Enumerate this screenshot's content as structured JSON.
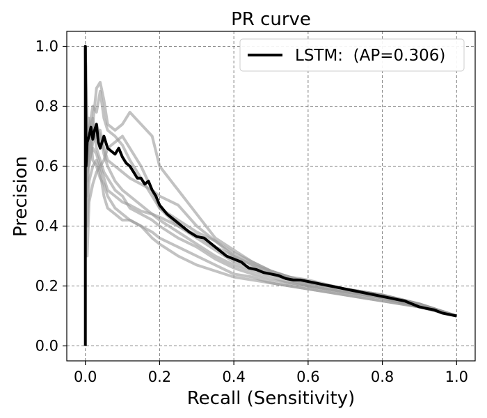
{
  "chart_data": {
    "type": "line",
    "title": "PR curve",
    "xlabel": "Recall (Sensitivity)",
    "ylabel": "Precision",
    "xlim": [
      -0.05,
      1.05
    ],
    "ylim": [
      -0.05,
      1.05
    ],
    "xticks": [
      0.0,
      0.2,
      0.4,
      0.6,
      0.8,
      1.0
    ],
    "xtick_labels": [
      "0.0",
      "0.2",
      "0.4",
      "0.6",
      "0.8",
      "1.0"
    ],
    "yticks": [
      0.0,
      0.2,
      0.4,
      0.6,
      0.8,
      1.0
    ],
    "ytick_labels": [
      "0.0",
      "0.2",
      "0.4",
      "0.6",
      "0.8",
      "1.0"
    ],
    "grid": true,
    "legend_position": "top-right",
    "colors": {
      "main": "#000000",
      "background_curves": "#999999",
      "grid": "#808080"
    },
    "series": [
      {
        "name": "LSTM:  (AP=0.306)",
        "x": [
          0.0,
          0.0,
          0.002,
          0.005,
          0.01,
          0.015,
          0.02,
          0.025,
          0.03,
          0.035,
          0.04,
          0.05,
          0.06,
          0.07,
          0.08,
          0.09,
          0.1,
          0.11,
          0.12,
          0.13,
          0.14,
          0.15,
          0.16,
          0.17,
          0.18,
          0.19,
          0.2,
          0.22,
          0.24,
          0.26,
          0.28,
          0.3,
          0.32,
          0.34,
          0.36,
          0.38,
          0.4,
          0.42,
          0.44,
          0.46,
          0.48,
          0.5,
          0.52,
          0.54,
          0.56,
          0.58,
          0.6,
          0.62,
          0.64,
          0.66,
          0.68,
          0.7,
          0.72,
          0.74,
          0.76,
          0.78,
          0.8,
          0.82,
          0.84,
          0.86,
          0.88,
          0.9,
          0.92,
          0.94,
          0.96,
          0.98,
          1.0
        ],
        "y": [
          0.0,
          1.0,
          0.6,
          0.68,
          0.7,
          0.73,
          0.69,
          0.72,
          0.74,
          0.68,
          0.66,
          0.7,
          0.66,
          0.65,
          0.64,
          0.66,
          0.63,
          0.61,
          0.6,
          0.58,
          0.56,
          0.56,
          0.54,
          0.55,
          0.52,
          0.5,
          0.47,
          0.44,
          0.42,
          0.4,
          0.38,
          0.365,
          0.36,
          0.34,
          0.32,
          0.3,
          0.29,
          0.28,
          0.26,
          0.255,
          0.245,
          0.24,
          0.235,
          0.225,
          0.22,
          0.22,
          0.215,
          0.21,
          0.205,
          0.2,
          0.195,
          0.19,
          0.185,
          0.18,
          0.175,
          0.17,
          0.165,
          0.16,
          0.155,
          0.15,
          0.14,
          0.13,
          0.125,
          0.12,
          0.11,
          0.105,
          0.1
        ]
      }
    ],
    "background_series": [
      {
        "x": [
          0.0,
          0.005,
          0.01,
          0.02,
          0.03,
          0.04,
          0.05,
          0.06,
          0.08,
          0.1,
          0.12,
          0.15,
          0.18,
          0.2,
          0.25,
          0.3,
          0.35,
          0.4,
          0.45,
          0.5,
          0.55,
          0.6,
          0.7,
          0.8,
          0.9,
          1.0
        ],
        "y": [
          1.0,
          0.55,
          0.72,
          0.8,
          0.78,
          0.85,
          0.76,
          0.72,
          0.7,
          0.67,
          0.62,
          0.56,
          0.5,
          0.46,
          0.4,
          0.36,
          0.32,
          0.28,
          0.26,
          0.24,
          0.22,
          0.2,
          0.18,
          0.16,
          0.13,
          0.1
        ]
      },
      {
        "x": [
          0.0,
          0.005,
          0.01,
          0.02,
          0.03,
          0.04,
          0.05,
          0.06,
          0.08,
          0.1,
          0.12,
          0.15,
          0.18,
          0.2,
          0.25,
          0.3,
          0.35,
          0.4,
          0.45,
          0.5,
          0.55,
          0.6,
          0.7,
          0.8,
          0.9,
          1.0
        ],
        "y": [
          1.0,
          0.62,
          0.66,
          0.74,
          0.86,
          0.88,
          0.82,
          0.74,
          0.72,
          0.74,
          0.78,
          0.74,
          0.7,
          0.6,
          0.52,
          0.44,
          0.36,
          0.32,
          0.28,
          0.25,
          0.23,
          0.22,
          0.19,
          0.17,
          0.14,
          0.1
        ]
      },
      {
        "x": [
          0.0,
          0.005,
          0.01,
          0.02,
          0.03,
          0.04,
          0.05,
          0.06,
          0.08,
          0.1,
          0.12,
          0.15,
          0.18,
          0.2,
          0.25,
          0.3,
          0.35,
          0.4,
          0.45,
          0.5,
          0.55,
          0.6,
          0.7,
          0.8,
          0.9,
          1.0
        ],
        "y": [
          1.0,
          0.5,
          0.64,
          0.7,
          0.74,
          0.7,
          0.64,
          0.6,
          0.55,
          0.52,
          0.5,
          0.47,
          0.44,
          0.42,
          0.38,
          0.34,
          0.3,
          0.27,
          0.25,
          0.23,
          0.21,
          0.2,
          0.18,
          0.16,
          0.13,
          0.1
        ]
      },
      {
        "x": [
          0.0,
          0.005,
          0.01,
          0.02,
          0.03,
          0.04,
          0.05,
          0.06,
          0.08,
          0.1,
          0.12,
          0.15,
          0.18,
          0.2,
          0.25,
          0.3,
          0.35,
          0.4,
          0.45,
          0.5,
          0.55,
          0.6,
          0.7,
          0.8,
          0.9,
          1.0
        ],
        "y": [
          1.0,
          0.4,
          0.55,
          0.6,
          0.62,
          0.58,
          0.5,
          0.46,
          0.44,
          0.42,
          0.42,
          0.4,
          0.38,
          0.36,
          0.33,
          0.3,
          0.27,
          0.24,
          0.23,
          0.21,
          0.2,
          0.19,
          0.17,
          0.15,
          0.13,
          0.1
        ]
      },
      {
        "x": [
          0.0,
          0.005,
          0.01,
          0.02,
          0.03,
          0.04,
          0.05,
          0.06,
          0.08,
          0.1,
          0.12,
          0.15,
          0.18,
          0.2,
          0.25,
          0.3,
          0.35,
          0.4,
          0.45,
          0.5,
          0.55,
          0.6,
          0.7,
          0.8,
          0.9,
          1.0
        ],
        "y": [
          1.0,
          0.66,
          0.6,
          0.68,
          0.7,
          0.72,
          0.66,
          0.62,
          0.6,
          0.58,
          0.56,
          0.54,
          0.52,
          0.5,
          0.47,
          0.4,
          0.35,
          0.31,
          0.28,
          0.25,
          0.23,
          0.21,
          0.19,
          0.17,
          0.14,
          0.1
        ]
      },
      {
        "x": [
          0.0,
          0.005,
          0.01,
          0.02,
          0.03,
          0.04,
          0.05,
          0.06,
          0.08,
          0.1,
          0.12,
          0.15,
          0.18,
          0.2,
          0.25,
          0.3,
          0.35,
          0.4,
          0.45,
          0.5,
          0.55,
          0.6,
          0.7,
          0.8,
          0.9,
          1.0
        ],
        "y": [
          1.0,
          0.3,
          0.48,
          0.54,
          0.58,
          0.6,
          0.62,
          0.66,
          0.68,
          0.7,
          0.66,
          0.6,
          0.52,
          0.46,
          0.42,
          0.38,
          0.35,
          0.3,
          0.27,
          0.24,
          0.22,
          0.21,
          0.19,
          0.17,
          0.14,
          0.1
        ]
      },
      {
        "x": [
          0.0,
          0.005,
          0.01,
          0.02,
          0.03,
          0.04,
          0.05,
          0.06,
          0.08,
          0.1,
          0.12,
          0.15,
          0.18,
          0.2,
          0.25,
          0.3,
          0.35,
          0.4,
          0.45,
          0.5,
          0.55,
          0.6,
          0.7,
          0.8,
          0.9,
          1.0
        ],
        "y": [
          1.0,
          0.62,
          0.7,
          0.76,
          0.66,
          0.62,
          0.58,
          0.56,
          0.52,
          0.5,
          0.46,
          0.44,
          0.42,
          0.4,
          0.36,
          0.33,
          0.29,
          0.26,
          0.24,
          0.22,
          0.21,
          0.2,
          0.18,
          0.16,
          0.13,
          0.1
        ]
      },
      {
        "x": [
          0.0,
          0.005,
          0.01,
          0.02,
          0.03,
          0.04,
          0.05,
          0.06,
          0.08,
          0.1,
          0.12,
          0.15,
          0.18,
          0.2,
          0.25,
          0.3,
          0.35,
          0.4,
          0.45,
          0.5,
          0.55,
          0.6,
          0.7,
          0.8,
          0.9,
          1.0
        ],
        "y": [
          1.0,
          0.72,
          0.76,
          0.62,
          0.6,
          0.56,
          0.54,
          0.5,
          0.46,
          0.44,
          0.42,
          0.4,
          0.36,
          0.34,
          0.3,
          0.27,
          0.25,
          0.23,
          0.22,
          0.21,
          0.2,
          0.19,
          0.17,
          0.15,
          0.13,
          0.1
        ]
      },
      {
        "x": [
          0.0,
          0.005,
          0.01,
          0.02,
          0.03,
          0.04,
          0.05,
          0.06,
          0.08,
          0.1,
          0.12,
          0.15,
          0.18,
          0.2,
          0.25,
          0.3,
          0.35,
          0.4,
          0.45,
          0.5,
          0.55,
          0.6,
          0.7,
          0.8,
          0.9,
          1.0
        ],
        "y": [
          1.0,
          0.58,
          0.62,
          0.66,
          0.64,
          0.6,
          0.56,
          0.52,
          0.5,
          0.48,
          0.47,
          0.45,
          0.44,
          0.43,
          0.4,
          0.37,
          0.33,
          0.3,
          0.27,
          0.25,
          0.23,
          0.21,
          0.19,
          0.17,
          0.14,
          0.1
        ]
      }
    ]
  }
}
